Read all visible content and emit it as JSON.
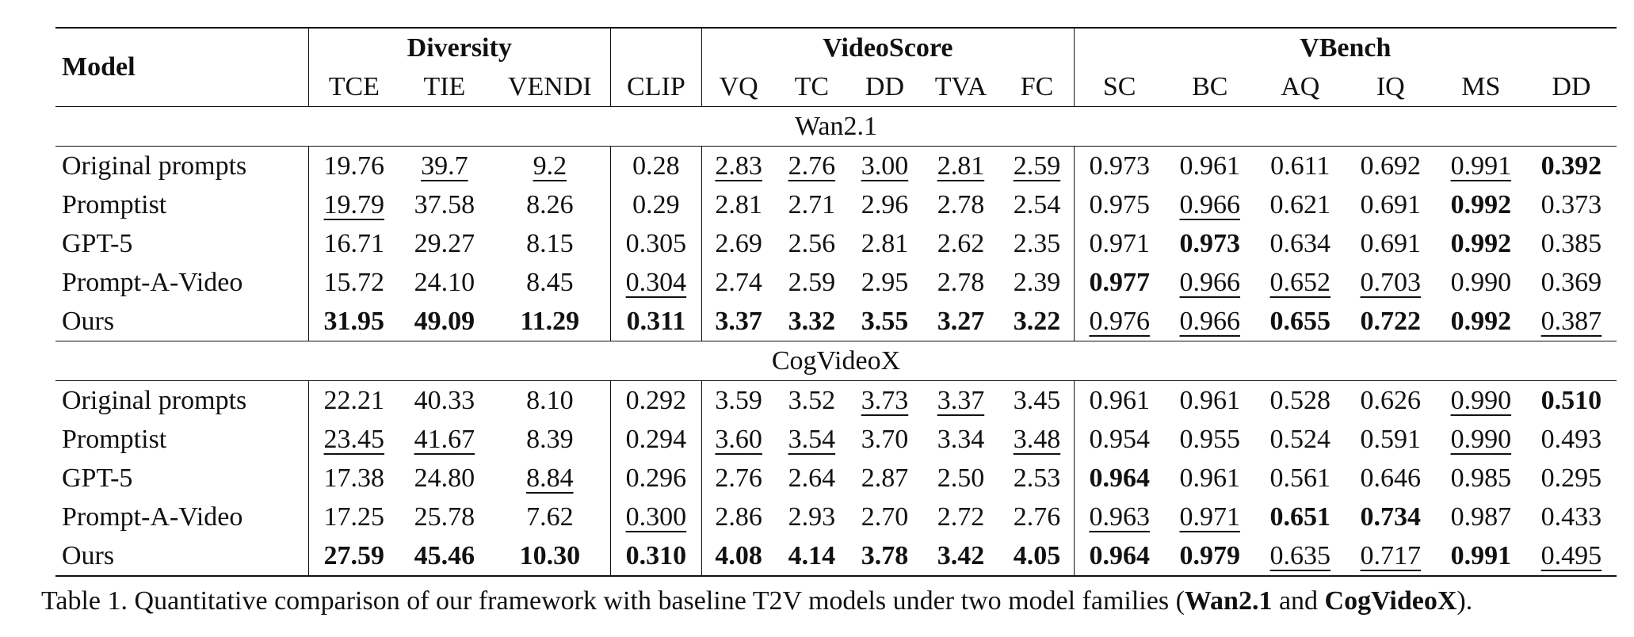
{
  "table": {
    "header": {
      "model": "Model",
      "groups": {
        "diversity": "Diversity",
        "videoscore": "VideoScore",
        "vbench": "VBench"
      },
      "columns": [
        "TCE",
        "TIE",
        "VENDI",
        "CLIP",
        "VQ",
        "TC",
        "DD",
        "TVA",
        "FC",
        "SC",
        "BC",
        "AQ",
        "IQ",
        "MS",
        "DD"
      ]
    },
    "sections": [
      {
        "family": "Wan2.1",
        "rows": [
          {
            "model": "Original prompts",
            "bold_model": false,
            "values": [
              "19.76",
              "39.7",
              "9.2",
              "0.28",
              "2.83",
              "2.76",
              "3.00",
              "2.81",
              "2.59",
              "0.973",
              "0.961",
              "0.611",
              "0.692",
              "0.991",
              "0.392"
            ],
            "style": [
              "",
              "u",
              "u",
              "",
              "u",
              "u",
              "u",
              "u",
              "u",
              "",
              "",
              "",
              "",
              "u",
              "b"
            ]
          },
          {
            "model": "Promptist",
            "bold_model": false,
            "values": [
              "19.79",
              "37.58",
              "8.26",
              "0.29",
              "2.81",
              "2.71",
              "2.96",
              "2.78",
              "2.54",
              "0.975",
              "0.966",
              "0.621",
              "0.691",
              "0.992",
              "0.373"
            ],
            "style": [
              "u",
              "",
              "",
              "",
              "",
              "",
              "",
              "",
              "",
              "",
              "u",
              "",
              "",
              "b",
              ""
            ]
          },
          {
            "model": "GPT-5",
            "bold_model": false,
            "values": [
              "16.71",
              "29.27",
              "8.15",
              "0.305",
              "2.69",
              "2.56",
              "2.81",
              "2.62",
              "2.35",
              "0.971",
              "0.973",
              "0.634",
              "0.691",
              "0.992",
              "0.385"
            ],
            "style": [
              "",
              "",
              "",
              "",
              "",
              "",
              "",
              "",
              "",
              "",
              "b",
              "",
              "",
              "b",
              ""
            ]
          },
          {
            "model": "Prompt-A-Video",
            "bold_model": false,
            "values": [
              "15.72",
              "24.10",
              "8.45",
              "0.304",
              "2.74",
              "2.59",
              "2.95",
              "2.78",
              "2.39",
              "0.977",
              "0.966",
              "0.652",
              "0.703",
              "0.990",
              "0.369"
            ],
            "style": [
              "",
              "",
              "",
              "u",
              "",
              "",
              "",
              "",
              "",
              "b",
              "u",
              "u",
              "u",
              "",
              ""
            ]
          },
          {
            "model": "Ours",
            "bold_model": true,
            "values": [
              "31.95",
              "49.09",
              "11.29",
              "0.311",
              "3.37",
              "3.32",
              "3.55",
              "3.27",
              "3.22",
              "0.976",
              "0.966",
              "0.655",
              "0.722",
              "0.992",
              "0.387"
            ],
            "style": [
              "b",
              "b",
              "b",
              "b",
              "b",
              "b",
              "b",
              "b",
              "b",
              "u",
              "u",
              "b",
              "b",
              "b",
              "u"
            ]
          }
        ]
      },
      {
        "family": "CogVideoX",
        "rows": [
          {
            "model": "Original prompts",
            "bold_model": false,
            "values": [
              "22.21",
              "40.33",
              "8.10",
              "0.292",
              "3.59",
              "3.52",
              "3.73",
              "3.37",
              "3.45",
              "0.961",
              "0.961",
              "0.528",
              "0.626",
              "0.990",
              "0.510"
            ],
            "style": [
              "",
              "",
              "",
              "",
              "",
              "",
              "u",
              "u",
              "",
              "",
              "",
              "",
              "",
              "u",
              "b"
            ]
          },
          {
            "model": "Promptist",
            "bold_model": false,
            "values": [
              "23.45",
              "41.67",
              "8.39",
              "0.294",
              "3.60",
              "3.54",
              "3.70",
              "3.34",
              "3.48",
              "0.954",
              "0.955",
              "0.524",
              "0.591",
              "0.990",
              "0.493"
            ],
            "style": [
              "u",
              "u",
              "",
              "",
              "u",
              "u",
              "",
              "",
              "u",
              "",
              "",
              "",
              "",
              "u",
              ""
            ]
          },
          {
            "model": "GPT-5",
            "bold_model": false,
            "values": [
              "17.38",
              "24.80",
              "8.84",
              "0.296",
              "2.76",
              "2.64",
              "2.87",
              "2.50",
              "2.53",
              "0.964",
              "0.961",
              "0.561",
              "0.646",
              "0.985",
              "0.295"
            ],
            "style": [
              "",
              "",
              "u",
              "",
              "",
              "",
              "",
              "",
              "",
              "b",
              "",
              "",
              "",
              "",
              ""
            ]
          },
          {
            "model": "Prompt-A-Video",
            "bold_model": false,
            "values": [
              "17.25",
              "25.78",
              "7.62",
              "0.300",
              "2.86",
              "2.93",
              "2.70",
              "2.72",
              "2.76",
              "0.963",
              "0.971",
              "0.651",
              "0.734",
              "0.987",
              "0.433"
            ],
            "style": [
              "",
              "",
              "",
              "u",
              "",
              "",
              "",
              "",
              "",
              "u",
              "u",
              "b",
              "b",
              "",
              ""
            ]
          },
          {
            "model": "Ours",
            "bold_model": true,
            "values": [
              "27.59",
              "45.46",
              "10.30",
              "0.310",
              "4.08",
              "4.14",
              "3.78",
              "3.42",
              "4.05",
              "0.964",
              "0.979",
              "0.635",
              "0.717",
              "0.991",
              "0.495"
            ],
            "style": [
              "b",
              "b",
              "b",
              "b",
              "b",
              "b",
              "b",
              "b",
              "b",
              "b",
              "b",
              "u",
              "u",
              "b",
              "u"
            ]
          }
        ]
      }
    ]
  },
  "caption": {
    "prefix": "Table 1.  Quantitative comparison of our framework with baseline T2V models under two model families (",
    "bold1": "Wan2.1",
    "middle": " and ",
    "bold2": "CogVideoX",
    "suffix": ")."
  }
}
